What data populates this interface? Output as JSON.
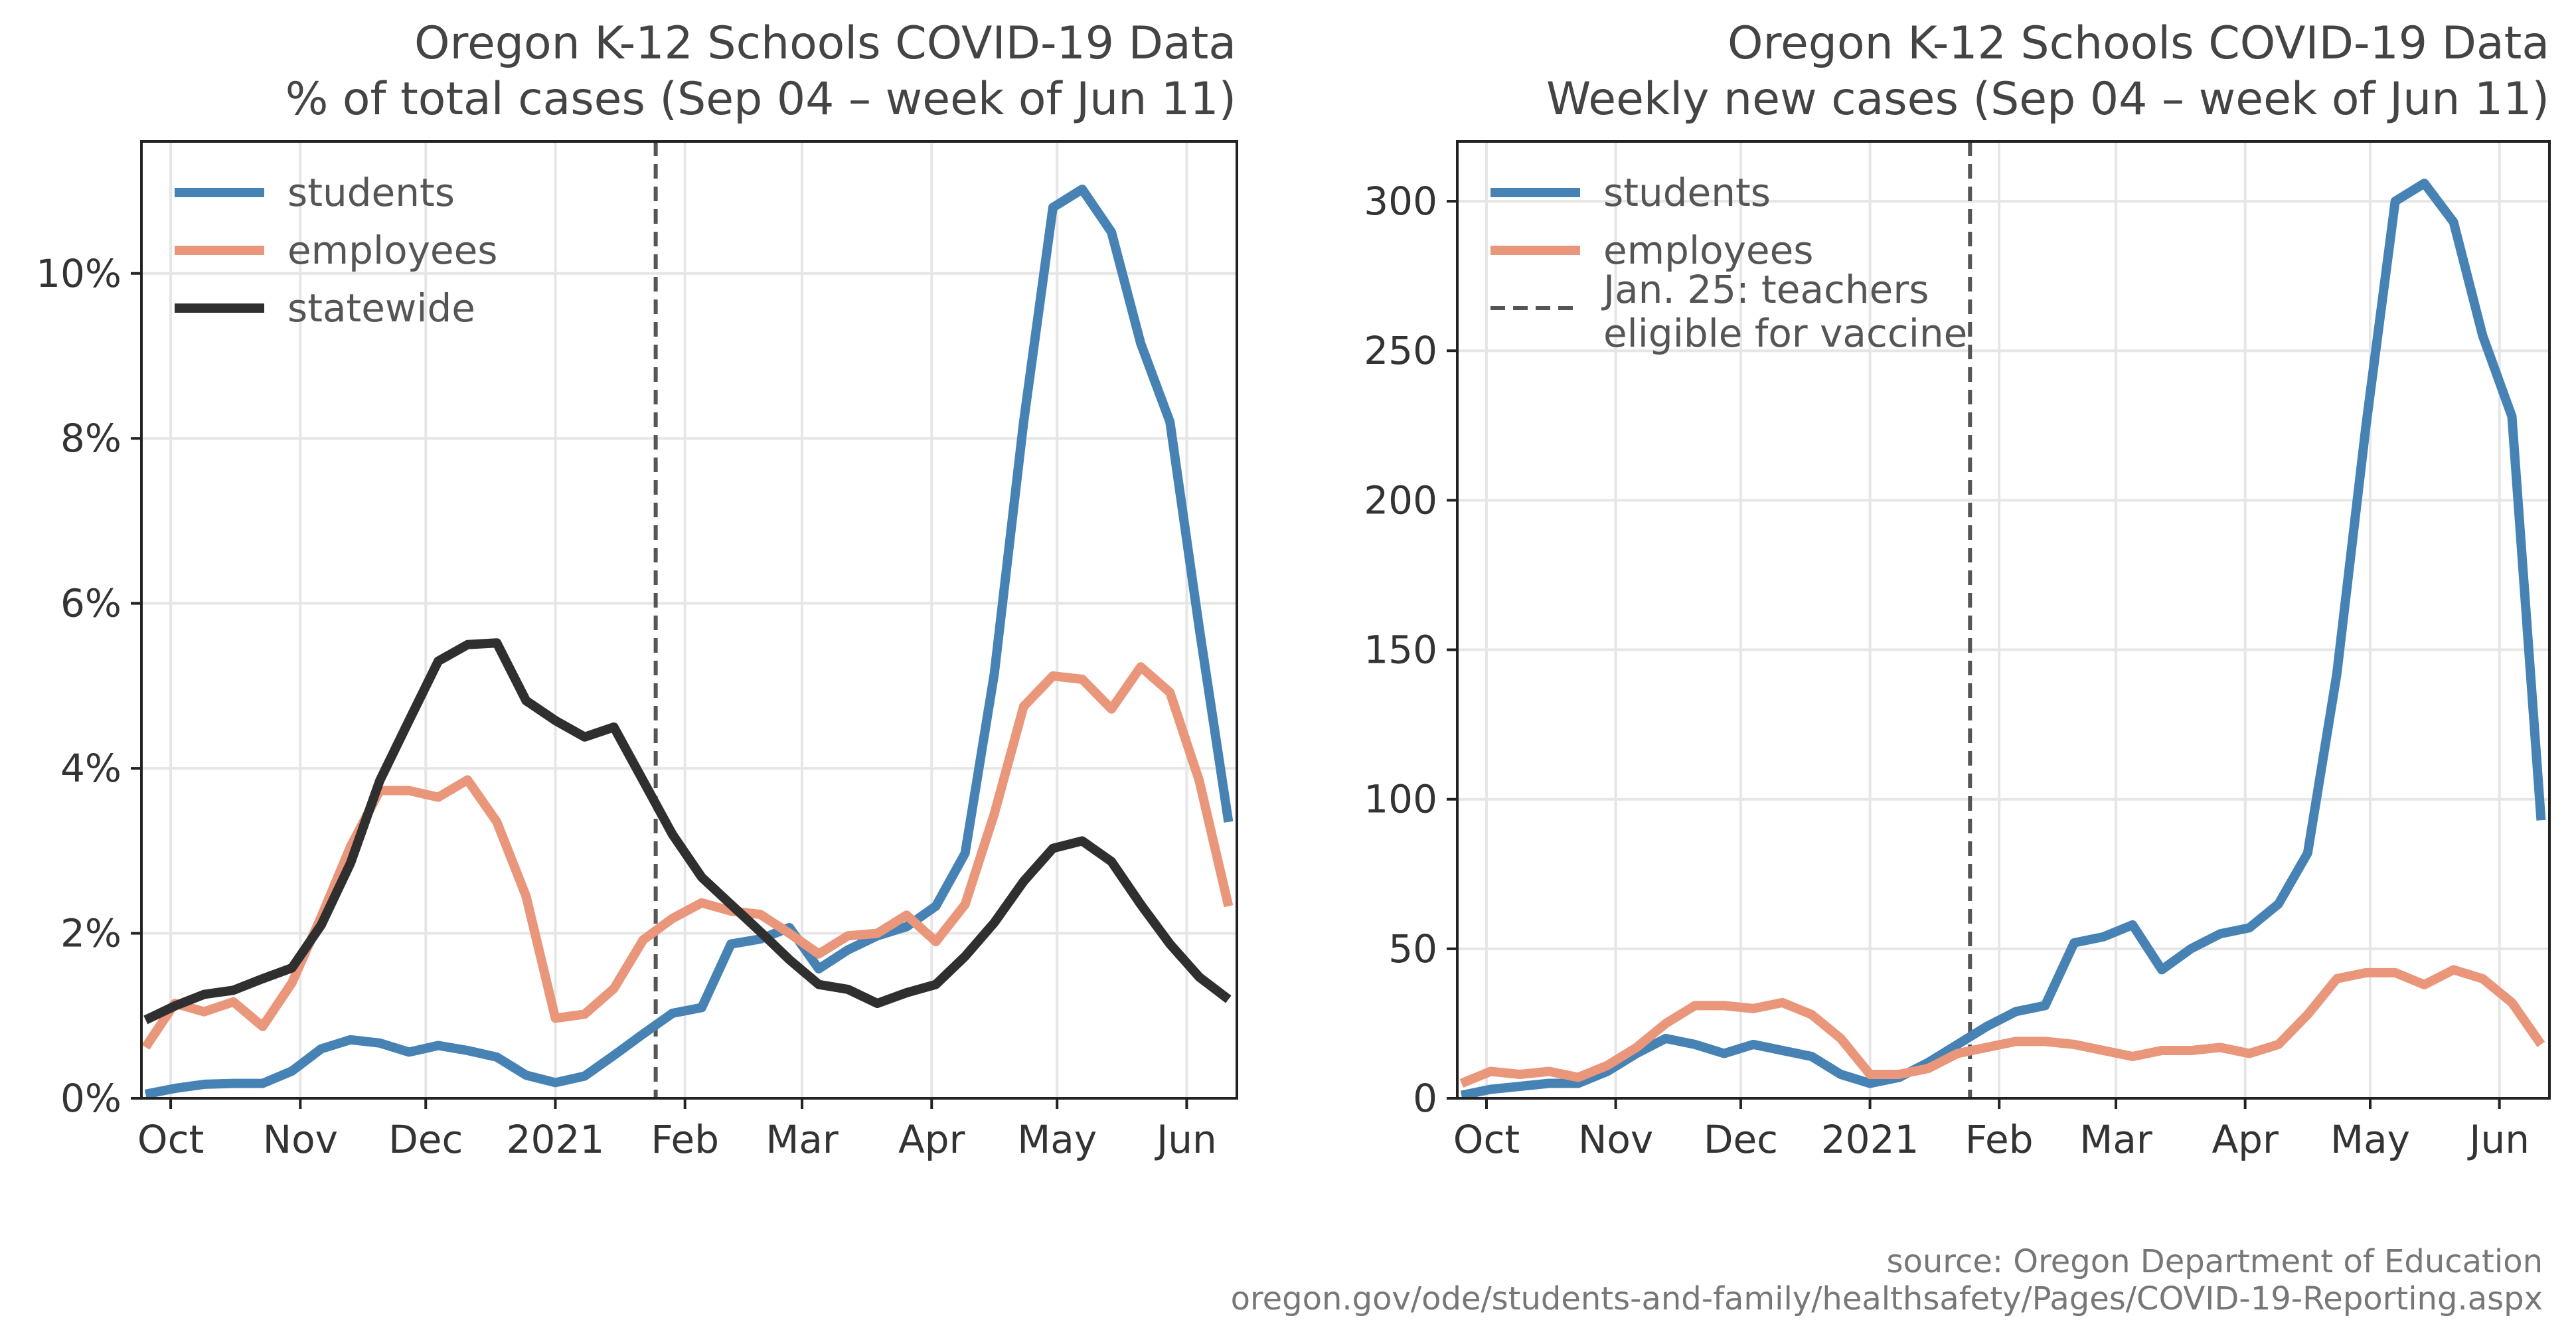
{
  "charts": {
    "left": {
      "title_line1": "Oregon K-12 Schools COVID-19 Data",
      "title_line2": "% of total cases (Sep 04 – week of Jun 11)"
    },
    "right": {
      "title_line1": "Oregon K-12 Schools COVID-19 Data",
      "title_line2": "Weekly new cases (Sep 04 – week of Jun 11)"
    }
  },
  "source": {
    "line1": "source: Oregon Department of Education",
    "line2": "oregon.gov/ode/students-and-family/healthsafety/Pages/COVID-19-Reporting.aspx"
  },
  "colors": {
    "students": "#4682b4",
    "employees": "#e9967a",
    "statewide": "#2f2f2f",
    "vline": "#555555",
    "grid": "#e6e6e6",
    "text": "#333333",
    "title": "#444444",
    "source": "#777777"
  },
  "chart_data": [
    {
      "type": "line",
      "title": "Oregon K-12 Schools COVID-19 Data\n% of total cases (Sep 04 – week of Jun 11)",
      "xlabel": "",
      "ylabel": "",
      "x": [
        "2020-09-25",
        "2020-10-02",
        "2020-10-09",
        "2020-10-16",
        "2020-10-23",
        "2020-10-30",
        "2020-11-06",
        "2020-11-13",
        "2020-11-20",
        "2020-11-27",
        "2020-12-04",
        "2020-12-11",
        "2020-12-18",
        "2020-12-25",
        "2021-01-01",
        "2021-01-08",
        "2021-01-15",
        "2021-01-22",
        "2021-01-29",
        "2021-02-05",
        "2021-02-12",
        "2021-02-19",
        "2021-02-26",
        "2021-03-05",
        "2021-03-12",
        "2021-03-19",
        "2021-03-26",
        "2021-04-02",
        "2021-04-09",
        "2021-04-16",
        "2021-04-23",
        "2021-04-30",
        "2021-05-07",
        "2021-05-14",
        "2021-05-21",
        "2021-05-28",
        "2021-06-04",
        "2021-06-11"
      ],
      "xticks": [
        {
          "date": "2020-10-01",
          "label": "Oct"
        },
        {
          "date": "2020-11-01",
          "label": "Nov"
        },
        {
          "date": "2020-12-01",
          "label": "Dec"
        },
        {
          "date": "2021-01-01",
          "label": "2021"
        },
        {
          "date": "2021-02-01",
          "label": "Feb"
        },
        {
          "date": "2021-03-01",
          "label": "Mar"
        },
        {
          "date": "2021-04-01",
          "label": "Apr"
        },
        {
          "date": "2021-05-01",
          "label": "May"
        },
        {
          "date": "2021-06-01",
          "label": "Jun"
        }
      ],
      "xlim": [
        "2020-09-24",
        "2021-06-13"
      ],
      "ylim": [
        0,
        11.6
      ],
      "yticks": [
        0,
        2,
        4,
        6,
        8,
        10
      ],
      "ytick_labels": [
        "0%",
        "2%",
        "4%",
        "6%",
        "8%",
        "10%"
      ],
      "vline": "2021-01-25",
      "grid": true,
      "legend_position": "upper-left",
      "legend": [
        "students",
        "employees",
        "statewide"
      ],
      "series": [
        {
          "name": "students",
          "key": "students",
          "values": [
            0.05,
            0.12,
            0.17,
            0.18,
            0.18,
            0.33,
            0.6,
            0.71,
            0.67,
            0.56,
            0.64,
            0.58,
            0.5,
            0.28,
            0.19,
            0.27,
            0.52,
            0.78,
            1.03,
            1.1,
            1.87,
            1.93,
            2.07,
            1.57,
            1.8,
            1.97,
            2.08,
            2.33,
            2.97,
            5.15,
            8.2,
            10.8,
            11.02,
            10.5,
            9.15,
            8.2,
            5.7,
            3.35
          ]
        },
        {
          "name": "employees",
          "key": "employees",
          "values": [
            0.62,
            1.15,
            1.05,
            1.17,
            0.87,
            1.4,
            2.2,
            3.05,
            3.73,
            3.73,
            3.65,
            3.86,
            3.35,
            2.45,
            0.97,
            1.02,
            1.33,
            1.92,
            2.18,
            2.37,
            2.27,
            2.23,
            2.0,
            1.75,
            1.97,
            2.0,
            2.22,
            1.9,
            2.35,
            3.45,
            4.75,
            5.12,
            5.08,
            4.72,
            5.23,
            4.92,
            3.85,
            2.33
          ]
        },
        {
          "name": "statewide",
          "key": "statewide",
          "values": [
            0.95,
            1.12,
            1.26,
            1.31,
            1.45,
            1.58,
            2.1,
            2.85,
            3.85,
            4.58,
            5.3,
            5.5,
            5.52,
            4.82,
            4.58,
            4.38,
            4.5,
            3.85,
            3.2,
            2.68,
            2.35,
            2.02,
            1.68,
            1.38,
            1.32,
            1.15,
            1.28,
            1.38,
            1.72,
            2.13,
            2.63,
            3.03,
            3.12,
            2.87,
            2.35,
            1.87,
            1.47,
            1.2
          ]
        }
      ]
    },
    {
      "type": "line",
      "title": "Oregon K-12 Schools COVID-19 Data\nWeekly new cases (Sep 04 – week of Jun 11)",
      "xlabel": "",
      "ylabel": "",
      "x": [
        "2020-09-25",
        "2020-10-02",
        "2020-10-09",
        "2020-10-16",
        "2020-10-23",
        "2020-10-30",
        "2020-11-06",
        "2020-11-13",
        "2020-11-20",
        "2020-11-27",
        "2020-12-04",
        "2020-12-11",
        "2020-12-18",
        "2020-12-25",
        "2021-01-01",
        "2021-01-08",
        "2021-01-15",
        "2021-01-22",
        "2021-01-29",
        "2021-02-05",
        "2021-02-12",
        "2021-02-19",
        "2021-02-26",
        "2021-03-05",
        "2021-03-12",
        "2021-03-19",
        "2021-03-26",
        "2021-04-02",
        "2021-04-09",
        "2021-04-16",
        "2021-04-23",
        "2021-04-30",
        "2021-05-07",
        "2021-05-14",
        "2021-05-21",
        "2021-05-28",
        "2021-06-04",
        "2021-06-11"
      ],
      "xticks": [
        {
          "date": "2020-10-01",
          "label": "Oct"
        },
        {
          "date": "2020-11-01",
          "label": "Nov"
        },
        {
          "date": "2020-12-01",
          "label": "Dec"
        },
        {
          "date": "2021-01-01",
          "label": "2021"
        },
        {
          "date": "2021-02-01",
          "label": "Feb"
        },
        {
          "date": "2021-03-01",
          "label": "Mar"
        },
        {
          "date": "2021-04-01",
          "label": "Apr"
        },
        {
          "date": "2021-05-01",
          "label": "May"
        },
        {
          "date": "2021-06-01",
          "label": "Jun"
        }
      ],
      "xlim": [
        "2020-09-24",
        "2021-06-13"
      ],
      "ylim": [
        0,
        320
      ],
      "yticks": [
        0,
        50,
        100,
        150,
        200,
        250,
        300
      ],
      "ytick_labels": [
        "0",
        "50",
        "100",
        "150",
        "200",
        "250",
        "300"
      ],
      "vline": "2021-01-25",
      "grid": true,
      "legend_position": "upper-left",
      "legend": [
        "students",
        "employees",
        "Jan. 25: teachers\neligible for vaccine"
      ],
      "series": [
        {
          "name": "students",
          "key": "students",
          "values": [
            1,
            3,
            4,
            5,
            5,
            9,
            15,
            20,
            18,
            15,
            18,
            16,
            14,
            8,
            5,
            7,
            12,
            18,
            24,
            29,
            31,
            52,
            54,
            58,
            43,
            50,
            55,
            57,
            65,
            82,
            142,
            225,
            300,
            306,
            293,
            255,
            228,
            93
          ]
        },
        {
          "name": "employees",
          "key": "employees",
          "values": [
            5,
            9,
            8,
            9,
            7,
            11,
            17,
            25,
            31,
            31,
            30,
            32,
            28,
            20,
            8,
            8,
            10,
            15,
            17,
            19,
            19,
            18,
            16,
            14,
            16,
            16,
            17,
            15,
            18,
            28,
            40,
            42,
            42,
            38,
            43,
            40,
            32,
            18
          ]
        }
      ]
    }
  ]
}
